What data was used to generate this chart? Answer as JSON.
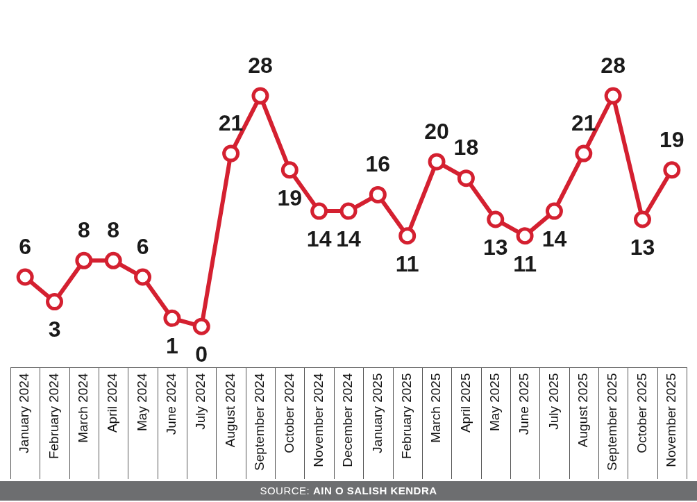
{
  "chart_data": {
    "type": "line",
    "categories": [
      "January 2024",
      "February 2024",
      "March 2024",
      "April 2024",
      "May 2024",
      "June 2024",
      "July 2024",
      "August 2024",
      "September 2024",
      "October 2024",
      "November 2024",
      "December 2024",
      "January 2025",
      "February 2025",
      "March 2025",
      "April 2025",
      "May 2025",
      "June 2025",
      "July 2025",
      "August 2025",
      "September 2025",
      "October 2025",
      "November 2025"
    ],
    "series": [
      {
        "color": "#d42030",
        "values": [
          6,
          3,
          8,
          8,
          6,
          1,
          0,
          21,
          28,
          19,
          14,
          14,
          16,
          11,
          20,
          18,
          13,
          11,
          14,
          21,
          28,
          13,
          19
        ]
      }
    ],
    "data_labels": true,
    "marker": "circle",
    "grid": false,
    "legend": false,
    "tick_labels": "x",
    "annotations": [
      "SOURCE: AIN O SALISH KENDRA"
    ]
  }
}
